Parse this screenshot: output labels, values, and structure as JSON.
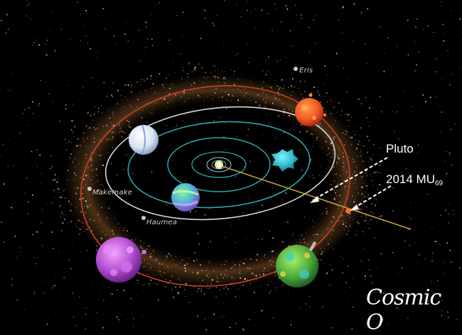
{
  "labels": {
    "eris": "Eris",
    "makemake": "Makemake",
    "haumea": "Haumea",
    "pluto": "Pluto",
    "mu69_main": "2014 MU",
    "mu69_sub": "69"
  },
  "logo": {
    "text": "Cosmic O"
  },
  "colors": {
    "background": "#000000",
    "orbit_teal": "#2aa8a8",
    "orbit_white": "#d8d8d8",
    "orbit_red": "#c8402a",
    "trajectory": "#c9a43a",
    "belt_orange": "#d98a3c"
  },
  "icons": {
    "sun": "sun-icon",
    "arrow": "dashed-arrow-icon"
  }
}
